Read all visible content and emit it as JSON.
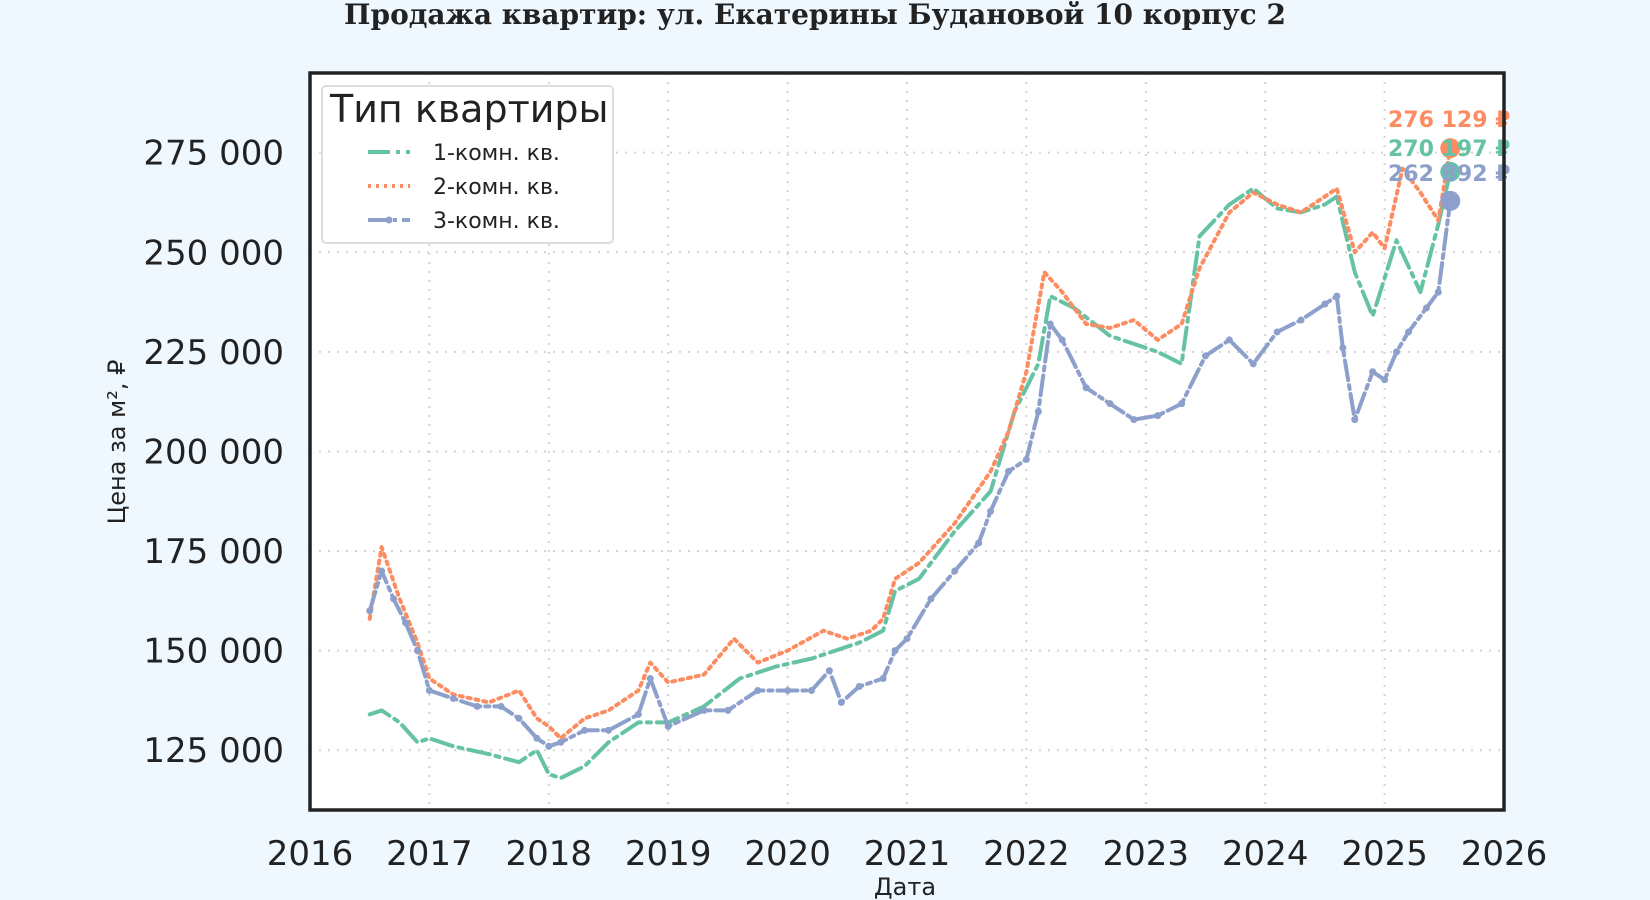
{
  "chart_data": {
    "type": "line",
    "title": "Продажа квартир: ул. Екатерины Будановой 10 корпус 2",
    "xlabel": "Дата",
    "ylabel": "Цена за м², ₽",
    "xlim": [
      2016.0,
      2026.0
    ],
    "ylim": [
      110000,
      295000
    ],
    "xticks": [
      2016,
      2017,
      2018,
      2019,
      2020,
      2021,
      2022,
      2023,
      2024,
      2025,
      2026
    ],
    "xtick_labels": [
      "2016",
      "2017",
      "2018",
      "2019",
      "2020",
      "2021",
      "2022",
      "2023",
      "2024",
      "2025",
      "2026"
    ],
    "yticks": [
      125000,
      150000,
      175000,
      200000,
      225000,
      250000,
      275000
    ],
    "ytick_labels": [
      "125 000",
      "150 000",
      "175 000",
      "200 000",
      "225 000",
      "250 000",
      "275 000"
    ],
    "grid": true,
    "legend": {
      "title": "Тип квартиры",
      "position": "top-left"
    },
    "series": [
      {
        "name": "1-комн. кв.",
        "color": "#66c2a5",
        "style": "dashdot",
        "x": [
          2016.5,
          2016.6,
          2016.75,
          2016.9,
          2017.0,
          2017.2,
          2017.5,
          2017.75,
          2017.9,
          2018.0,
          2018.1,
          2018.3,
          2018.5,
          2018.75,
          2019.0,
          2019.3,
          2019.6,
          2019.9,
          2020.2,
          2020.4,
          2020.6,
          2020.8,
          2020.9,
          2021.1,
          2021.4,
          2021.7,
          2021.9,
          2022.1,
          2022.2,
          2022.4,
          2022.7,
          2022.9,
          2023.1,
          2023.3,
          2023.45,
          2023.7,
          2023.9,
          2024.1,
          2024.3,
          2024.5,
          2024.6,
          2024.75,
          2024.9,
          2025.1,
          2025.3,
          2025.45,
          2025.55
        ],
        "y": [
          134000,
          135000,
          132000,
          127000,
          128000,
          126000,
          124000,
          122000,
          125000,
          119000,
          118000,
          121000,
          127000,
          132000,
          132000,
          136000,
          143000,
          146000,
          148000,
          150000,
          152000,
          155000,
          165000,
          168000,
          180000,
          190000,
          210000,
          222000,
          239000,
          236000,
          229000,
          227000,
          225000,
          222000,
          254000,
          262000,
          266000,
          261000,
          260000,
          262000,
          264000,
          245000,
          234000,
          253000,
          240000,
          257000,
          270197
        ]
      },
      {
        "name": "2-комн. кв.",
        "color": "#fc8d62",
        "style": "dotted",
        "x": [
          2016.5,
          2016.6,
          2016.75,
          2016.9,
          2017.0,
          2017.2,
          2017.5,
          2017.75,
          2017.9,
          2018.0,
          2018.1,
          2018.3,
          2018.5,
          2018.75,
          2018.85,
          2019.0,
          2019.3,
          2019.55,
          2019.75,
          2020.0,
          2020.3,
          2020.5,
          2020.7,
          2020.8,
          2020.9,
          2021.1,
          2021.4,
          2021.7,
          2021.85,
          2022.0,
          2022.15,
          2022.3,
          2022.5,
          2022.7,
          2022.9,
          2023.1,
          2023.3,
          2023.45,
          2023.7,
          2023.9,
          2024.1,
          2024.3,
          2024.5,
          2024.6,
          2024.75,
          2024.9,
          2025.0,
          2025.15,
          2025.3,
          2025.45,
          2025.55
        ],
        "y": [
          158000,
          176000,
          163000,
          152000,
          143000,
          139000,
          137000,
          140000,
          133000,
          131000,
          128000,
          133000,
          135000,
          140000,
          147000,
          142000,
          144000,
          153000,
          147000,
          150000,
          155000,
          153000,
          155000,
          158000,
          168000,
          172000,
          182000,
          195000,
          205000,
          220000,
          245000,
          240000,
          232000,
          231000,
          233000,
          228000,
          232000,
          246000,
          260000,
          265000,
          262000,
          260000,
          264000,
          266000,
          250000,
          255000,
          251000,
          271000,
          265000,
          258000,
          276129
        ]
      },
      {
        "name": "3-комн. кв.",
        "color": "#8da0cb",
        "style": "dashdot-marker",
        "x": [
          2016.5,
          2016.6,
          2016.7,
          2016.8,
          2016.9,
          2017.0,
          2017.2,
          2017.4,
          2017.6,
          2017.75,
          2017.9,
          2018.0,
          2018.1,
          2018.3,
          2018.5,
          2018.75,
          2018.85,
          2019.0,
          2019.3,
          2019.5,
          2019.75,
          2020.0,
          2020.2,
          2020.35,
          2020.45,
          2020.6,
          2020.8,
          2020.9,
          2021.0,
          2021.2,
          2021.4,
          2021.6,
          2021.7,
          2021.85,
          2022.0,
          2022.1,
          2022.2,
          2022.3,
          2022.5,
          2022.7,
          2022.9,
          2023.1,
          2023.3,
          2023.5,
          2023.7,
          2023.9,
          2024.1,
          2024.3,
          2024.5,
          2024.6,
          2024.65,
          2024.75,
          2024.9,
          2025.0,
          2025.1,
          2025.2,
          2025.35,
          2025.45,
          2025.55
        ],
        "y": [
          160000,
          170000,
          163000,
          157000,
          150000,
          140000,
          138000,
          136000,
          136000,
          133000,
          128000,
          126000,
          127000,
          130000,
          130000,
          134000,
          143000,
          131000,
          135000,
          135000,
          140000,
          140000,
          140000,
          145000,
          137000,
          141000,
          143000,
          150000,
          153000,
          163000,
          170000,
          177000,
          185000,
          195000,
          198000,
          210000,
          232000,
          228000,
          216000,
          212000,
          208000,
          209000,
          212000,
          224000,
          228000,
          222000,
          230000,
          233000,
          237000,
          239000,
          226000,
          208000,
          220000,
          218000,
          225000,
          230000,
          236000,
          240000,
          262892
        ]
      }
    ],
    "end_labels": [
      "276 129 ₽",
      "270 197 ₽",
      "262 892 ₽"
    ]
  }
}
